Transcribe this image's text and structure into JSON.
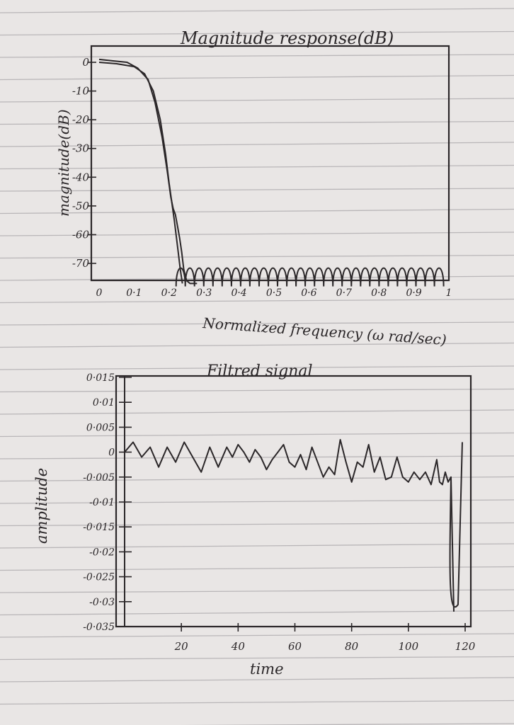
{
  "paper": {
    "color": "#e9e6e5",
    "rule_color": "#b9b6b8",
    "ink": "#2b2729"
  },
  "chart_data": [
    {
      "type": "line",
      "title": "Magnitude response(dB)",
      "xlabel": "Normalized frequency (ω rad/sec)",
      "ylabel": "magnitude(dB)",
      "xlim": [
        0,
        1
      ],
      "ylim": [
        -78,
        2
      ],
      "x_ticks": [
        "0",
        "0·1",
        "0·2",
        "0·3",
        "0·4",
        "0·5",
        "0·6",
        "0·7",
        "0·8",
        "0·9",
        "1"
      ],
      "x_tick_values": [
        0,
        0.1,
        0.2,
        0.3,
        0.4,
        0.5,
        0.6,
        0.7,
        0.8,
        0.9,
        1.0
      ],
      "y_ticks": [
        "0",
        "-10",
        "-20",
        "-30",
        "-40",
        "-50",
        "-60",
        "-70"
      ],
      "y_tick_values": [
        0,
        -10,
        -20,
        -30,
        -40,
        -50,
        -60,
        -70
      ],
      "grid": false,
      "series": [
        {
          "x": [
            0,
            0.05,
            0.1,
            0.13,
            0.155,
            0.175,
            0.19,
            0.2,
            0.215,
            0.225,
            0.232,
            0.238
          ],
          "values": [
            0,
            -0.5,
            -1.5,
            -4,
            -10,
            -20,
            -32,
            -42,
            -55,
            -65,
            -72,
            -77
          ]
        },
        {
          "x": [
            0,
            0.04,
            0.08,
            0.11,
            0.14,
            0.16,
            0.18,
            0.195,
            0.205,
            0.212,
            0.218,
            0.224,
            0.23,
            0.236,
            0.242,
            0.25,
            0.26,
            0.27,
            0.28
          ],
          "values": [
            1,
            0.5,
            0,
            -2,
            -6,
            -14,
            -26,
            -38,
            -47,
            -51,
            -53,
            -57,
            -61,
            -66,
            -72,
            -76,
            -77,
            -77,
            -77
          ]
        },
        {
          "x_start": 0.22,
          "x_end": 0.985,
          "ripple_count": 29,
          "top": -69.5,
          "bottom": -78,
          "values_description_hidden": true
        }
      ]
    },
    {
      "type": "line",
      "title": "Filtred signal",
      "xlabel": "time",
      "ylabel": "amplitude",
      "xlim": [
        0,
        120
      ],
      "ylim": [
        -0.035,
        0.015
      ],
      "x_ticks": [
        "20",
        "40",
        "60",
        "80",
        "100",
        "120"
      ],
      "x_tick_values": [
        20,
        40,
        60,
        80,
        100,
        120
      ],
      "y_ticks": [
        "0·015",
        "0·01",
        "0·005",
        "0",
        "-0·005",
        "-0·01",
        "-0·015",
        "-0·02",
        "-0·025",
        "-0·03",
        "-0·035"
      ],
      "y_tick_values": [
        0.015,
        0.01,
        0.005,
        0,
        -0.005,
        -0.01,
        -0.015,
        -0.02,
        -0.025,
        -0.03,
        -0.035
      ],
      "grid": false,
      "series": [
        {
          "x": [
            0,
            3,
            6,
            9,
            12,
            15,
            18,
            21,
            24,
            27,
            30,
            33,
            36,
            38,
            40,
            42,
            44,
            46,
            48,
            50,
            52,
            54,
            56,
            58,
            60,
            62,
            64,
            66,
            68,
            70,
            72,
            74,
            76,
            78,
            80,
            82,
            84,
            86,
            88,
            90,
            92,
            94,
            96,
            98,
            100,
            102,
            104,
            106,
            108,
            110,
            111,
            112,
            113,
            114,
            115,
            116
          ],
          "values": [
            0,
            0.002,
            -0.001,
            0.001,
            -0.003,
            0.001,
            -0.002,
            0.002,
            -0.001,
            -0.004,
            0.001,
            -0.003,
            0.001,
            -0.001,
            0.0015,
            0,
            -0.002,
            0.0005,
            -0.001,
            -0.0035,
            -0.0015,
            0,
            0.0015,
            -0.002,
            -0.003,
            -0.0005,
            -0.0035,
            0.001,
            -0.002,
            -0.005,
            -0.003,
            -0.0045,
            0.0025,
            -0.002,
            -0.006,
            -0.002,
            -0.003,
            0.0015,
            -0.004,
            -0.001,
            -0.0055,
            -0.005,
            -0.001,
            -0.005,
            -0.006,
            -0.004,
            -0.0055,
            -0.004,
            -0.0065,
            -0.0015,
            -0.006,
            -0.0065,
            -0.004,
            -0.006,
            -0.005,
            -0.032
          ]
        }
      ]
    }
  ]
}
